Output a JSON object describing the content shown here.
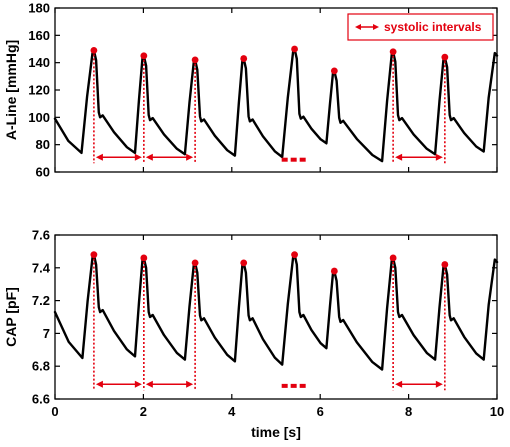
{
  "chart_data": [
    {
      "type": "line",
      "ylabel": "A-Line [mmHg]",
      "xlabel": "",
      "xlim": [
        0,
        10
      ],
      "ylim": [
        60,
        180
      ],
      "yticks": [
        60,
        80,
        100,
        120,
        140,
        160,
        180
      ],
      "xticks": [
        0,
        2,
        4,
        6,
        8,
        10
      ],
      "show_xtick_labels": false,
      "legend": {
        "label": "systolic intervals",
        "placement": "top-right"
      },
      "beats": [
        {
          "foot": 0.6,
          "foot_y": 74,
          "peak": 0.88,
          "peak_y": 149,
          "dicrotic_y": 100
        },
        {
          "foot": 1.81,
          "foot_y": 74,
          "peak": 2.01,
          "peak_y": 145,
          "dicrotic_y": 98
        },
        {
          "foot": 2.94,
          "foot_y": 73,
          "peak": 3.17,
          "peak_y": 142,
          "dicrotic_y": 97
        },
        {
          "foot": 4.07,
          "foot_y": 72,
          "peak": 4.27,
          "peak_y": 143,
          "dicrotic_y": 97
        },
        {
          "foot": 5.14,
          "foot_y": 71,
          "peak": 5.42,
          "peak_y": 150,
          "dicrotic_y": 99
        },
        {
          "foot": 6.14,
          "foot_y": 81,
          "peak": 6.32,
          "peak_y": 134,
          "dicrotic_y": 96
        },
        {
          "foot": 7.4,
          "foot_y": 68,
          "peak": 7.65,
          "peak_y": 148,
          "dicrotic_y": 98
        },
        {
          "foot": 8.6,
          "foot_y": 73,
          "peak": 8.82,
          "peak_y": 144,
          "dicrotic_y": 98
        }
      ],
      "tail": {
        "foot": 9.7,
        "foot_y": 75,
        "peak": 9.95,
        "peak_y": 147
      },
      "start_y": 99,
      "markers": [
        0.88,
        2.01,
        3.17,
        7.65,
        8.82
      ],
      "intervals": [
        [
          0.88,
          2.01
        ],
        [
          2.01,
          3.17
        ],
        [
          7.65,
          8.82
        ]
      ],
      "ellipsis_x": 5.4,
      "ellipsis_y": 69
    },
    {
      "type": "line",
      "ylabel": "CAP [pF]",
      "xlabel": "time [s]",
      "xlim": [
        0,
        10
      ],
      "ylim": [
        6.6,
        7.6
      ],
      "yticks": [
        "6.6",
        "6.8",
        "7",
        "7.2",
        "7.4",
        "7.6"
      ],
      "xticks": [
        0,
        2,
        4,
        6,
        8,
        10
      ],
      "show_xtick_labels": true,
      "beats": [
        {
          "foot": 0.62,
          "foot_y": 6.85,
          "peak": 0.88,
          "peak_y": 7.48,
          "dicrotic_y": 7.13
        },
        {
          "foot": 1.81,
          "foot_y": 6.86,
          "peak": 2.01,
          "peak_y": 7.46,
          "dicrotic_y": 7.1
        },
        {
          "foot": 2.94,
          "foot_y": 6.84,
          "peak": 3.17,
          "peak_y": 7.43,
          "dicrotic_y": 7.08
        },
        {
          "foot": 4.07,
          "foot_y": 6.83,
          "peak": 4.27,
          "peak_y": 7.43,
          "dicrotic_y": 7.08
        },
        {
          "foot": 5.14,
          "foot_y": 6.81,
          "peak": 5.42,
          "peak_y": 7.48,
          "dicrotic_y": 7.1
        },
        {
          "foot": 6.14,
          "foot_y": 6.91,
          "peak": 6.32,
          "peak_y": 7.38,
          "dicrotic_y": 7.07
        },
        {
          "foot": 7.4,
          "foot_y": 6.78,
          "peak": 7.65,
          "peak_y": 7.46,
          "dicrotic_y": 7.1
        },
        {
          "foot": 8.6,
          "foot_y": 6.84,
          "peak": 8.82,
          "peak_y": 7.42,
          "dicrotic_y": 7.08
        }
      ],
      "tail": {
        "foot": 9.7,
        "foot_y": 6.84,
        "peak": 9.95,
        "peak_y": 7.45
      },
      "start_y": 7.13,
      "markers": [
        0.88,
        2.01,
        3.17,
        7.65,
        8.82
      ],
      "intervals": [
        [
          0.88,
          2.01
        ],
        [
          2.01,
          3.17
        ],
        [
          7.65,
          8.82
        ]
      ],
      "ellipsis_x": 5.4,
      "ellipsis_y": 6.68
    }
  ]
}
